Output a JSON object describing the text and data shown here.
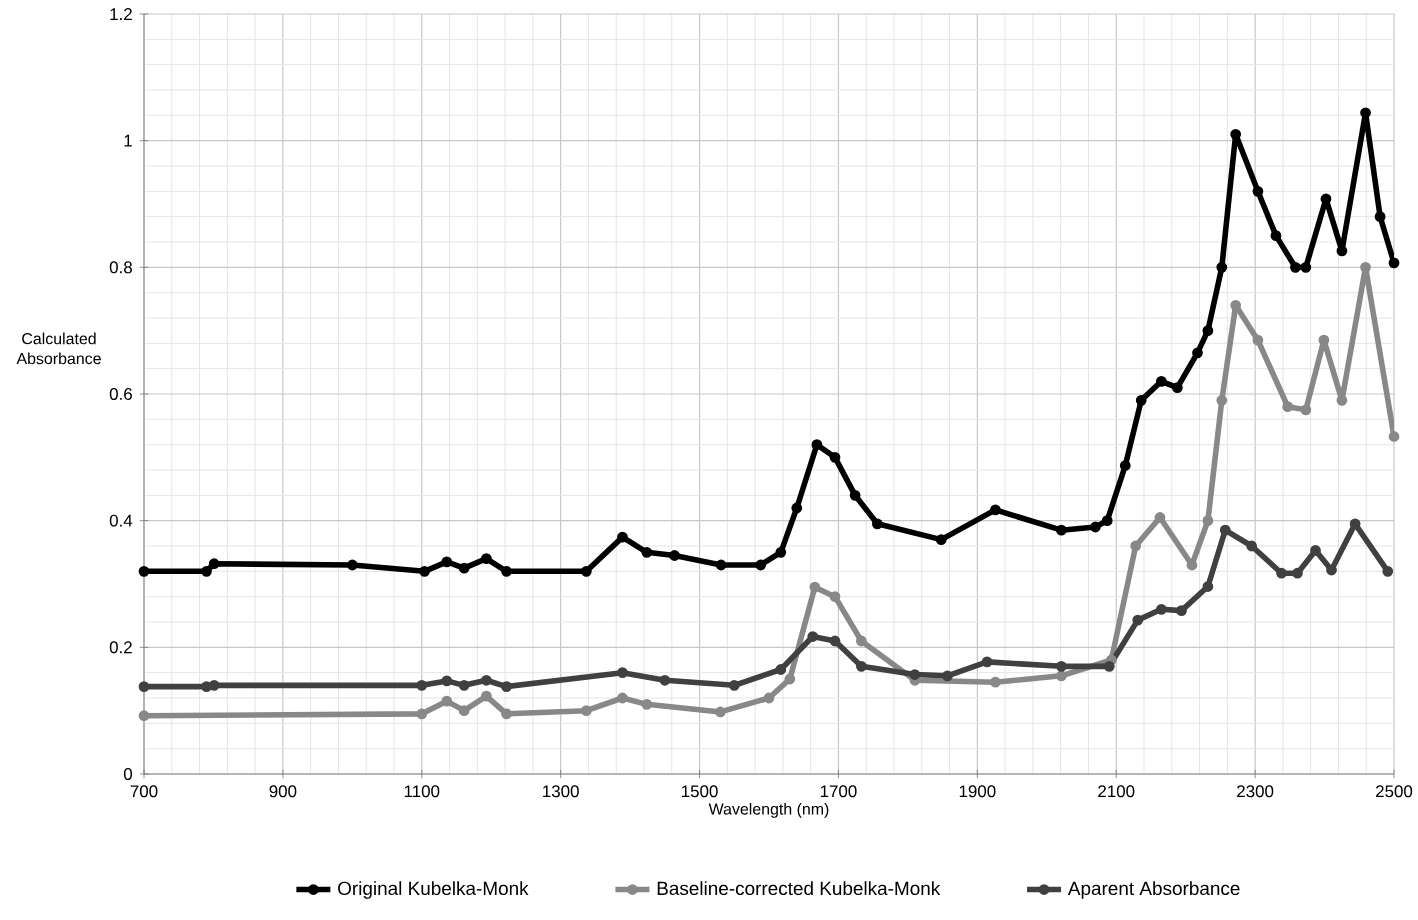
{
  "chart_data": {
    "type": "line",
    "xlabel": "Wavelength (nm)",
    "ylabel": "Calculated Absorbance",
    "xlim": [
      700,
      2500
    ],
    "xticks": [
      700,
      900,
      1100,
      1300,
      1500,
      1700,
      1900,
      2100,
      2300,
      2500
    ],
    "ylim": [
      0,
      1.2
    ],
    "yticks": [
      0,
      0.2,
      0.4,
      0.6,
      0.8,
      1,
      1.2
    ],
    "grid": true,
    "legend": "bottom",
    "marker": "circle",
    "line_style": "solid",
    "series": [
      {
        "name": "Original Kubelka-Monk",
        "color": "#000000",
        "x": [
          700,
          790,
          801,
          1000,
          1104,
          1136,
          1161,
          1193,
          1222,
          1337,
          1389,
          1424,
          1464,
          1531,
          1588,
          1617,
          1640,
          1669,
          1695,
          1724,
          1756,
          1848,
          1926,
          2021,
          2070,
          2087,
          2113,
          2136,
          2165,
          2188,
          2217,
          2232,
          2252,
          2272,
          2304,
          2330,
          2358,
          2373,
          2402,
          2425,
          2459,
          2480,
          2500
        ],
        "values": [
          0.32,
          0.32,
          0.332,
          0.33,
          0.32,
          0.335,
          0.325,
          0.34,
          0.32,
          0.32,
          0.374,
          0.35,
          0.345,
          0.33,
          0.33,
          0.35,
          0.42,
          0.52,
          0.5,
          0.44,
          0.395,
          0.37,
          0.417,
          0.385,
          0.39,
          0.4,
          0.487,
          0.59,
          0.62,
          0.61,
          0.665,
          0.7,
          0.8,
          1.01,
          0.92,
          0.85,
          0.8,
          0.8,
          0.908,
          0.826,
          1.044,
          0.88,
          0.807
        ]
      },
      {
        "name": "Baseline-corrected Kubelka-Monk",
        "color": "#888888",
        "x": [
          700,
          1100,
          1136,
          1161,
          1193,
          1222,
          1337,
          1389,
          1424,
          1530,
          1600,
          1630,
          1666,
          1695,
          1733,
          1810,
          1926,
          2021,
          2093,
          2128,
          2163,
          2209,
          2232,
          2252,
          2272,
          2304,
          2347,
          2373,
          2399,
          2425,
          2459,
          2500
        ],
        "values": [
          0.092,
          0.095,
          0.115,
          0.1,
          0.123,
          0.095,
          0.1,
          0.12,
          0.11,
          0.098,
          0.12,
          0.15,
          0.295,
          0.28,
          0.21,
          0.148,
          0.145,
          0.155,
          0.18,
          0.36,
          0.405,
          0.33,
          0.4,
          0.59,
          0.74,
          0.685,
          0.58,
          0.575,
          0.685,
          0.59,
          0.8,
          0.533
        ]
      },
      {
        "name": "Aparent Absorbance",
        "color": "#404040",
        "x": [
          700,
          790,
          801,
          1100,
          1136,
          1161,
          1193,
          1222,
          1389,
          1450,
          1550,
          1617,
          1663,
          1695,
          1733,
          1810,
          1857,
          1914,
          2021,
          2090,
          2131,
          2165,
          2194,
          2232,
          2257,
          2295,
          2338,
          2361,
          2387,
          2410,
          2444,
          2491
        ],
        "values": [
          0.138,
          0.138,
          0.14,
          0.14,
          0.147,
          0.14,
          0.148,
          0.138,
          0.16,
          0.148,
          0.14,
          0.165,
          0.217,
          0.21,
          0.17,
          0.157,
          0.155,
          0.177,
          0.17,
          0.17,
          0.243,
          0.26,
          0.258,
          0.296,
          0.385,
          0.36,
          0.317,
          0.317,
          0.353,
          0.322,
          0.395,
          0.32
        ]
      }
    ]
  }
}
